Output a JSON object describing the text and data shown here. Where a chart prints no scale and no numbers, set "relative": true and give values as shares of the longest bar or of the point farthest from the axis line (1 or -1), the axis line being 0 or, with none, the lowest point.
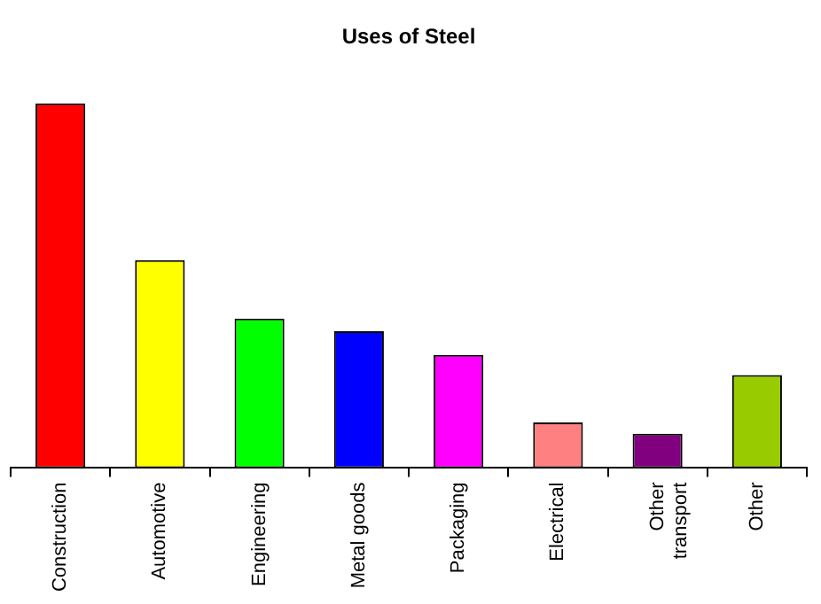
{
  "chart_data": {
    "type": "bar",
    "title": "Uses of Steel",
    "relative": true,
    "grid": false,
    "legend": false,
    "categories": [
      "Construction",
      "Automotive",
      "Engineering",
      "Metal goods",
      "Packaging",
      "Electrical",
      "Other transport",
      "Other"
    ],
    "values": [
      1,
      0.57,
      0.41,
      0.375,
      0.31,
      0.125,
      0.094,
      0.255
    ],
    "colors": [
      "#ff0000",
      "#ffff00",
      "#00ff00",
      "#0000ff",
      "#ff00ff",
      "#ff8080",
      "#800080",
      "#99cc00"
    ]
  }
}
